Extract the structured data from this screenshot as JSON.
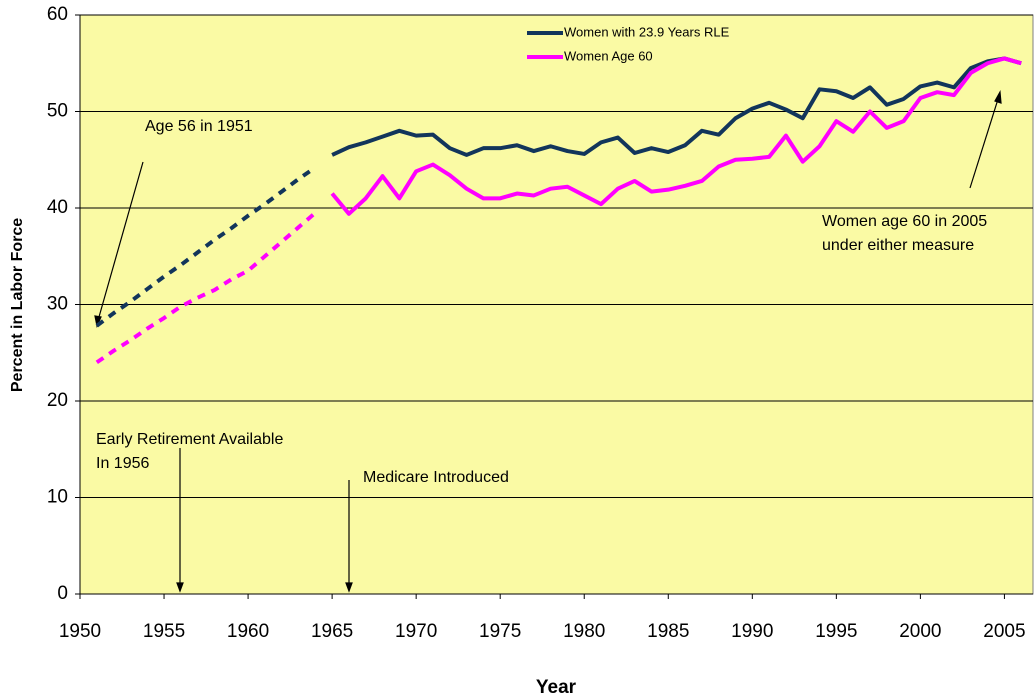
{
  "chart_data": {
    "type": "line",
    "xlabel": "Year",
    "ylabel": "Percent in Labor Force",
    "x": [
      1951,
      1952,
      1953,
      1954,
      1955,
      1956,
      1957,
      1958,
      1959,
      1960,
      1961,
      1962,
      1963,
      1964,
      1965,
      1966,
      1967,
      1968,
      1969,
      1970,
      1971,
      1972,
      1973,
      1974,
      1975,
      1976,
      1977,
      1978,
      1979,
      1980,
      1981,
      1982,
      1983,
      1984,
      1985,
      1986,
      1987,
      1988,
      1989,
      1990,
      1991,
      1992,
      1993,
      1994,
      1995,
      1996,
      1997,
      1998,
      1999,
      2000,
      2001,
      2002,
      2003,
      2004,
      2005,
      2006
    ],
    "dashed_through": 1964,
    "series": [
      {
        "name": "Women with 23.9 Years RLE",
        "color": "#12355b",
        "values": [
          27.8,
          29.1,
          30.3,
          31.6,
          32.9,
          34.1,
          35.4,
          36.7,
          37.9,
          39.2,
          40.4,
          41.7,
          43.0,
          44.2,
          45.5,
          46.3,
          46.8,
          47.4,
          48.0,
          47.5,
          47.6,
          46.2,
          45.5,
          46.2,
          46.2,
          46.5,
          45.9,
          46.4,
          45.9,
          45.6,
          46.8,
          47.3,
          45.7,
          46.2,
          45.8,
          46.5,
          48.0,
          47.6,
          49.3,
          50.3,
          50.9,
          50.2,
          49.3,
          52.3,
          52.1,
          51.4,
          52.5,
          50.7,
          51.3,
          52.6,
          53.0,
          52.5,
          54.5,
          55.2,
          55.5,
          55.0
        ]
      },
      {
        "name": "Women Age 60",
        "color": "#ff00ff",
        "values": [
          24.0,
          25.2,
          26.3,
          27.5,
          28.6,
          29.8,
          30.7,
          31.5,
          32.6,
          33.5,
          35.0,
          36.5,
          38.0,
          39.5,
          41.5,
          39.4,
          41.0,
          43.3,
          41.0,
          43.8,
          44.5,
          43.4,
          42.0,
          41.0,
          41.0,
          41.5,
          41.3,
          42.0,
          42.2,
          41.3,
          40.4,
          42.0,
          42.8,
          41.7,
          41.9,
          42.3,
          42.8,
          44.3,
          45.0,
          45.1,
          45.3,
          47.5,
          44.8,
          46.4,
          49.0,
          47.9,
          50.0,
          48.3,
          49.0,
          51.4,
          52.0,
          51.7,
          54.0,
          55.0,
          55.5,
          55.0
        ]
      }
    ],
    "xlim": [
      1950,
      2006.7
    ],
    "ylim": [
      0,
      60
    ],
    "xticks": [
      1950,
      1955,
      1960,
      1965,
      1970,
      1975,
      1980,
      1985,
      1990,
      1995,
      2000,
      2005
    ],
    "yticks": [
      0,
      10,
      20,
      30,
      40,
      50,
      60
    ],
    "grid": true,
    "legend": "top-center",
    "annotations": [
      {
        "lines": [
          "Age 56 in 1951"
        ]
      },
      {
        "lines": [
          "Women age 60 in 2005",
          "under either measure"
        ]
      },
      {
        "lines": [
          "Early Retirement Available",
          "In 1956"
        ]
      },
      {
        "lines": [
          "Medicare Introduced"
        ]
      }
    ]
  }
}
